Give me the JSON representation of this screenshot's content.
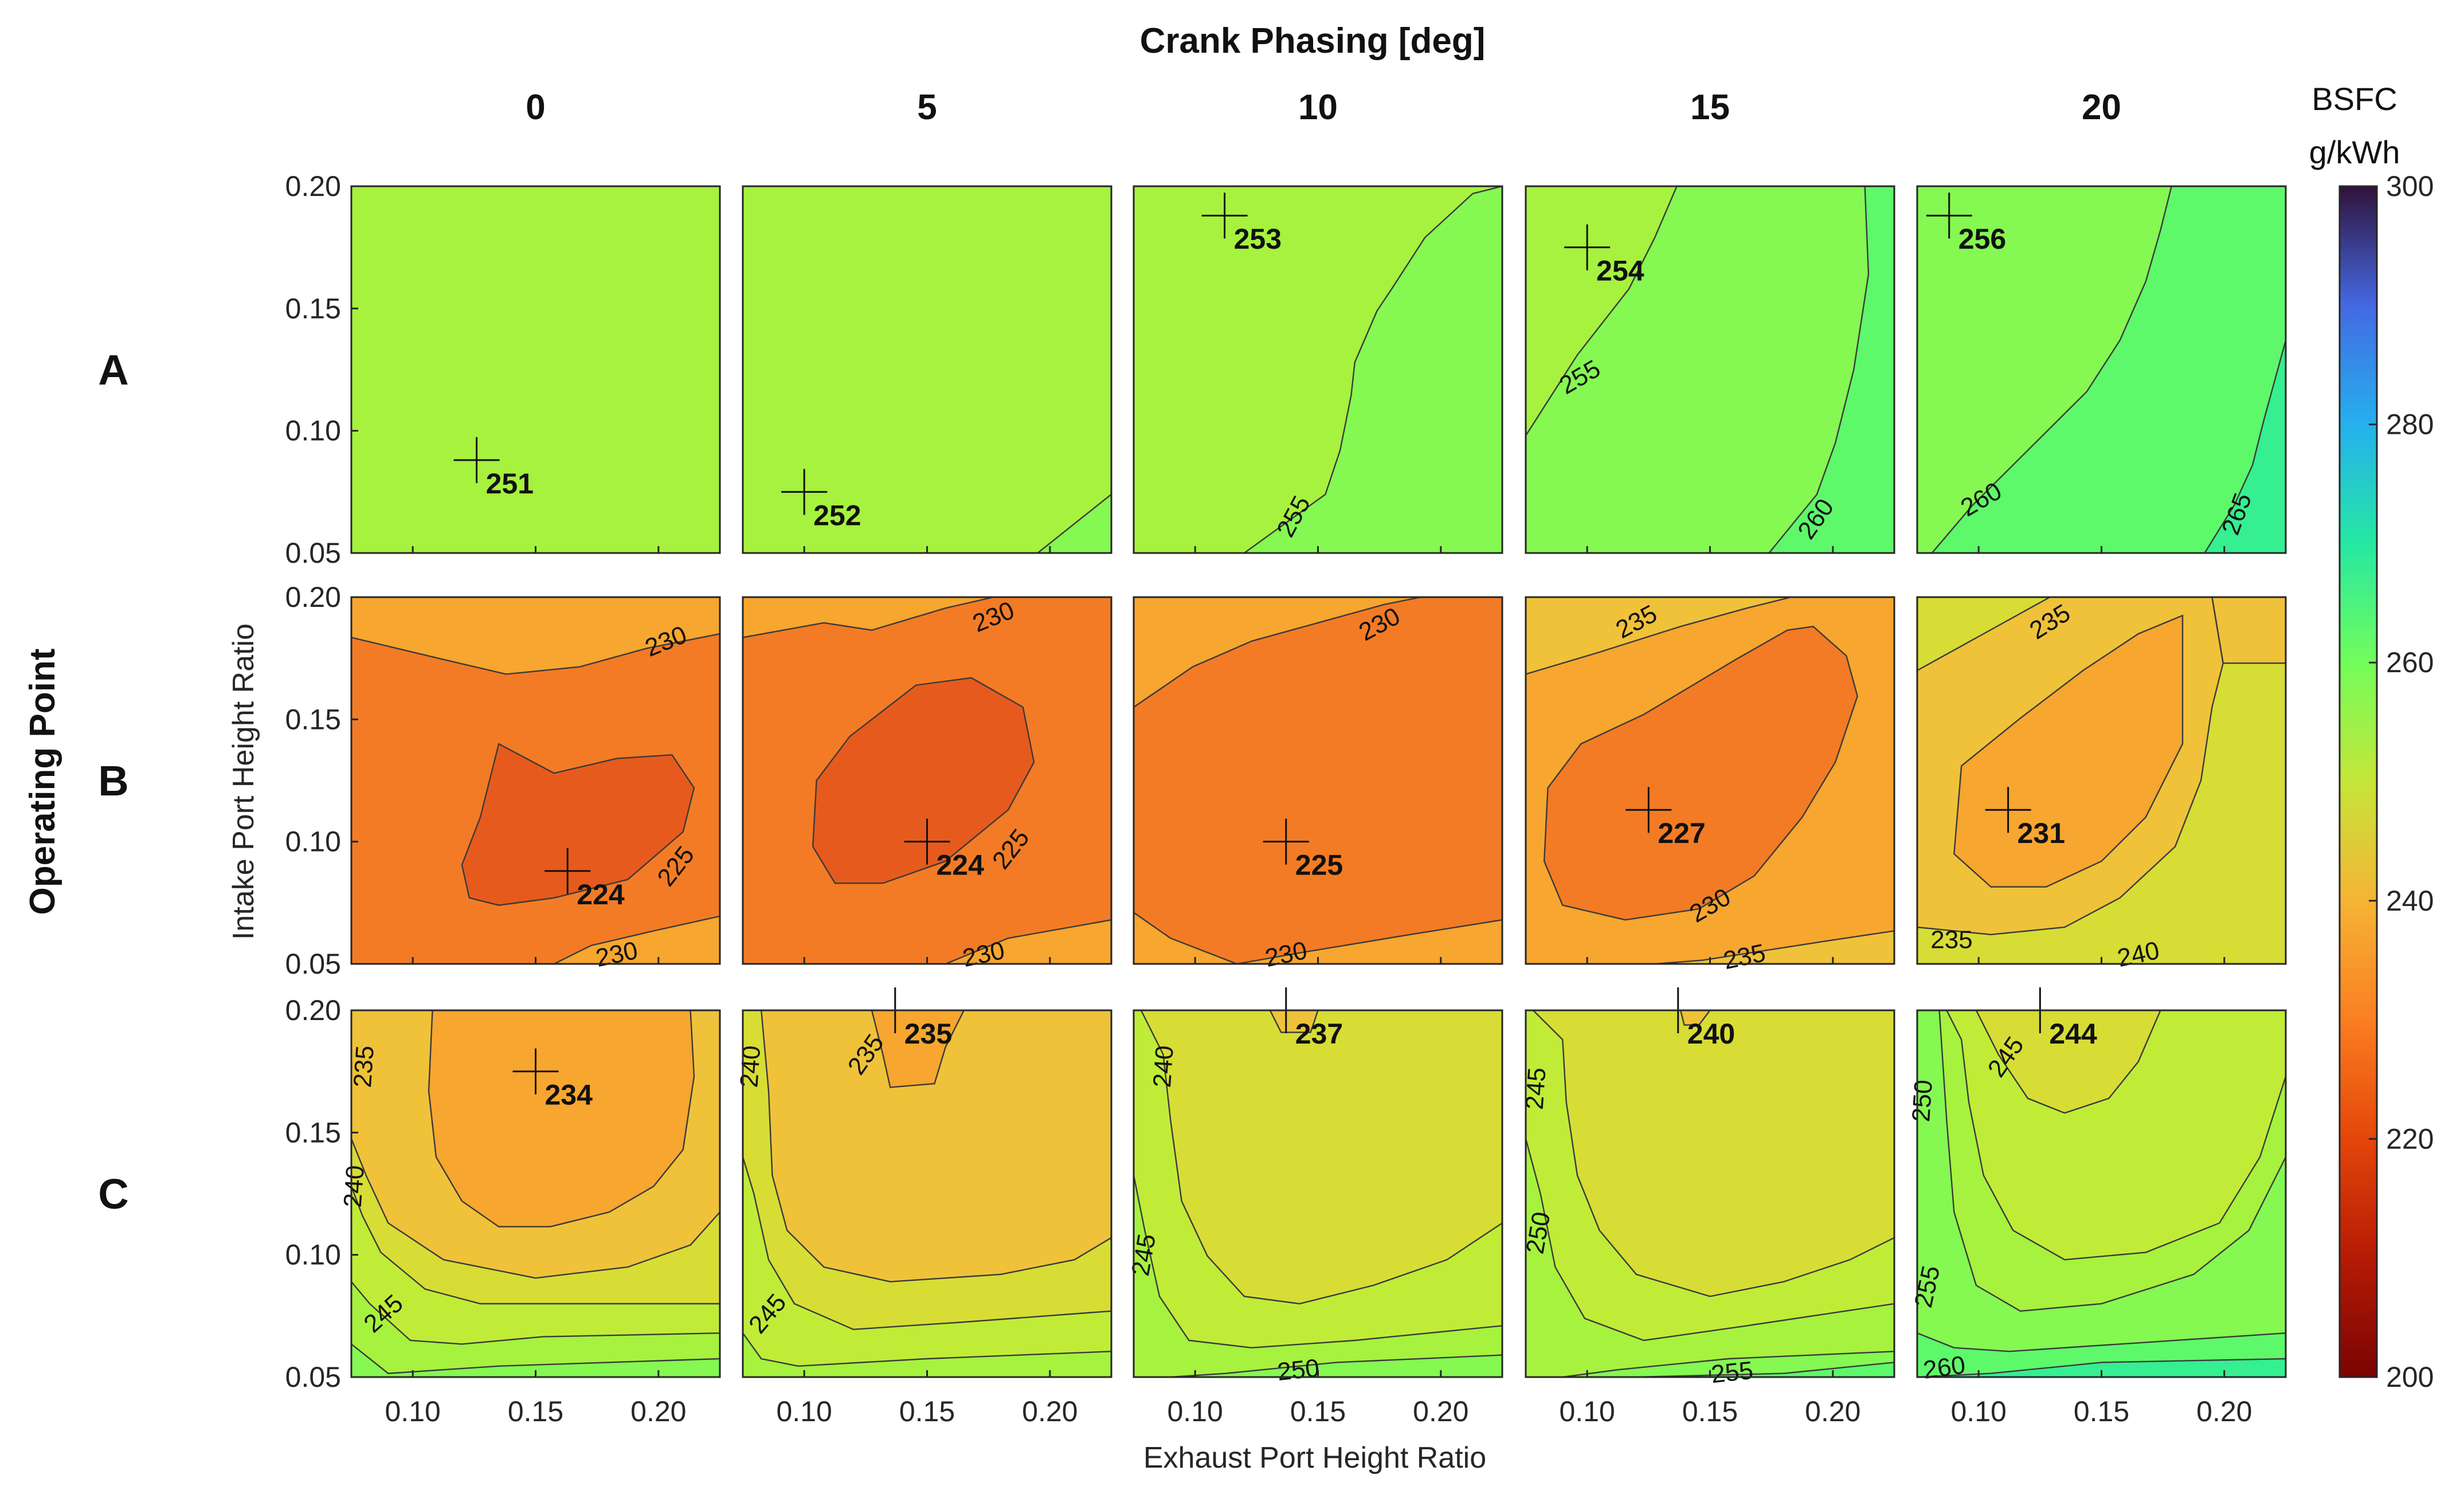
{
  "chart_data": {
    "type": "contour",
    "title": "Crank Phasing [deg]",
    "row_title": "Operating Point",
    "xlabel": "Exhaust Port Height Ratio",
    "ylabel": "Intake Port Height Ratio",
    "xlim": [
      0.075,
      0.225
    ],
    "ylim": [
      0.05,
      0.2
    ],
    "xticks": [
      0.1,
      0.15,
      0.2
    ],
    "xtick_labels": [
      "0.10",
      "0.15",
      "0.20"
    ],
    "yticks": [
      0.05,
      0.1,
      0.15,
      0.2
    ],
    "ytick_labels": [
      "0.05",
      "0.10",
      "0.15",
      "0.20"
    ],
    "columns": [
      "0",
      "5",
      "10",
      "15",
      "20"
    ],
    "rows": [
      "A",
      "B",
      "C"
    ],
    "colorbar": {
      "title_line1": "BSFC",
      "title_line2": "g/kWh",
      "range": [
        200,
        300
      ],
      "ticks": [
        200,
        220,
        240,
        260,
        280,
        300
      ],
      "tick_labels": [
        "200",
        "220",
        "240",
        "260",
        "280",
        "300"
      ],
      "colormap": "turbo (reversed)"
    },
    "panels": [
      {
        "row": "A",
        "col": "0",
        "min": {
          "x": 0.126,
          "y": 0.088,
          "label": "251"
        },
        "levels": [],
        "labels": []
      },
      {
        "row": "A",
        "col": "5",
        "min": {
          "x": 0.1,
          "y": 0.075,
          "label": "252"
        },
        "levels": [
          255
        ],
        "labels": []
      },
      {
        "row": "A",
        "col": "10",
        "min": {
          "x": 0.112,
          "y": 0.188,
          "label": "253"
        },
        "levels": [
          255
        ],
        "labels": [
          {
            "text": "255",
            "x": 0.14,
            "y": 0.065,
            "rot": -62
          }
        ]
      },
      {
        "row": "A",
        "col": "15",
        "min": {
          "x": 0.1,
          "y": 0.175,
          "label": "254"
        },
        "levels": [
          255,
          260
        ],
        "labels": [
          {
            "text": "255",
            "x": 0.097,
            "y": 0.122,
            "rot": -30
          },
          {
            "text": "260",
            "x": 0.193,
            "y": 0.064,
            "rot": -55
          }
        ]
      },
      {
        "row": "A",
        "col": "20",
        "min": {
          "x": 0.088,
          "y": 0.188,
          "label": "256"
        },
        "levels": [
          260,
          265
        ],
        "labels": [
          {
            "text": "260",
            "x": 0.101,
            "y": 0.072,
            "rot": -30
          },
          {
            "text": "265",
            "x": 0.205,
            "y": 0.066,
            "rot": -70
          }
        ]
      },
      {
        "row": "B",
        "col": "0",
        "min": {
          "x": 0.163,
          "y": 0.088,
          "label": "224"
        },
        "levels": [
          225,
          230
        ],
        "labels": [
          {
            "text": "230",
            "x": 0.203,
            "y": 0.182,
            "rot": -22
          },
          {
            "text": "225",
            "x": 0.207,
            "y": 0.09,
            "rot": -52
          },
          {
            "text": "230",
            "x": 0.183,
            "y": 0.054,
            "rot": -12
          }
        ]
      },
      {
        "row": "B",
        "col": "5",
        "min": {
          "x": 0.15,
          "y": 0.1,
          "label": "224"
        },
        "levels": [
          225,
          230
        ],
        "labels": [
          {
            "text": "230",
            "x": 0.177,
            "y": 0.192,
            "rot": -22
          },
          {
            "text": "225",
            "x": 0.184,
            "y": 0.097,
            "rot": -52
          },
          {
            "text": "230",
            "x": 0.173,
            "y": 0.054,
            "rot": -12
          }
        ]
      },
      {
        "row": "B",
        "col": "10",
        "min": {
          "x": 0.137,
          "y": 0.1,
          "label": "225"
        },
        "levels": [
          230
        ],
        "labels": [
          {
            "text": "230",
            "x": 0.175,
            "y": 0.189,
            "rot": -28
          },
          {
            "text": "230",
            "x": 0.137,
            "y": 0.054,
            "rot": -12
          }
        ]
      },
      {
        "row": "B",
        "col": "15",
        "min": {
          "x": 0.125,
          "y": 0.113,
          "label": "227"
        },
        "levels": [
          230,
          235
        ],
        "labels": [
          {
            "text": "235",
            "x": 0.12,
            "y": 0.19,
            "rot": -28
          },
          {
            "text": "230",
            "x": 0.15,
            "y": 0.074,
            "rot": -30
          },
          {
            "text": "235",
            "x": 0.164,
            "y": 0.053,
            "rot": -12
          }
        ]
      },
      {
        "row": "B",
        "col": "20",
        "min": {
          "x": 0.112,
          "y": 0.113,
          "label": "231"
        },
        "levels": [
          235,
          240
        ],
        "labels": [
          {
            "text": "235",
            "x": 0.129,
            "y": 0.19,
            "rot": -32
          },
          {
            "text": "235",
            "x": 0.089,
            "y": 0.06,
            "rot": 0
          },
          {
            "text": "240",
            "x": 0.165,
            "y": 0.054,
            "rot": -12
          }
        ]
      },
      {
        "row": "C",
        "col": "0",
        "min": {
          "x": 0.15,
          "y": 0.175,
          "label": "234"
        },
        "levels": [
          235,
          240,
          245
        ],
        "labels": [
          {
            "text": "235",
            "x": 0.08,
            "y": 0.177,
            "rot": -86
          },
          {
            "text": "240",
            "x": 0.076,
            "y": 0.128,
            "rot": -86
          },
          {
            "text": "245",
            "x": 0.088,
            "y": 0.076,
            "rot": -42
          }
        ]
      },
      {
        "row": "C",
        "col": "5",
        "min": {
          "x": 0.137,
          "y": 0.2,
          "label": "235"
        },
        "levels": [
          235,
          240,
          245
        ],
        "labels": [
          {
            "text": "235",
            "x": 0.125,
            "y": 0.182,
            "rot": -55
          },
          {
            "text": "240",
            "x": 0.078,
            "y": 0.177,
            "rot": -86
          },
          {
            "text": "245",
            "x": 0.085,
            "y": 0.076,
            "rot": -50
          }
        ]
      },
      {
        "row": "C",
        "col": "10",
        "min": {
          "x": 0.137,
          "y": 0.2,
          "label": "237"
        },
        "levels": [
          240,
          245,
          250
        ],
        "labels": [
          {
            "text": "240",
            "x": 0.087,
            "y": 0.177,
            "rot": -86
          },
          {
            "text": "245",
            "x": 0.079,
            "y": 0.1,
            "rot": -80
          },
          {
            "text": "250",
            "x": 0.142,
            "y": 0.053,
            "rot": -6
          }
        ]
      },
      {
        "row": "C",
        "col": "15",
        "min": {
          "x": 0.137,
          "y": 0.2,
          "label": "240"
        },
        "levels": [
          245,
          250,
          255
        ],
        "labels": [
          {
            "text": "245",
            "x": 0.079,
            "y": 0.168,
            "rot": -86
          },
          {
            "text": "250",
            "x": 0.08,
            "y": 0.109,
            "rot": -80
          },
          {
            "text": "255",
            "x": 0.159,
            "y": 0.052,
            "rot": -6
          }
        ]
      },
      {
        "row": "C",
        "col": "20",
        "min": {
          "x": 0.125,
          "y": 0.2,
          "label": "244"
        },
        "levels": [
          245,
          250,
          255,
          260
        ],
        "labels": [
          {
            "text": "245",
            "x": 0.111,
            "y": 0.181,
            "rot": -55
          },
          {
            "text": "250",
            "x": 0.077,
            "y": 0.163,
            "rot": -86
          },
          {
            "text": "255",
            "x": 0.079,
            "y": 0.087,
            "rot": -78
          },
          {
            "text": "260",
            "x": 0.086,
            "y": 0.054,
            "rot": -8
          }
        ]
      }
    ]
  },
  "colors": {
    "c_220": "#e75a1d",
    "c_225": "#f37b25",
    "c_230": "#f7a62f",
    "c_235": "#efc23a",
    "c_240": "#d7dd35",
    "c_245": "#c0ec38",
    "c_250": "#a6f23e",
    "c_255": "#85f852",
    "c_260": "#5ef86b",
    "c_265": "#35ef91",
    "c_270": "#22e5ad"
  }
}
